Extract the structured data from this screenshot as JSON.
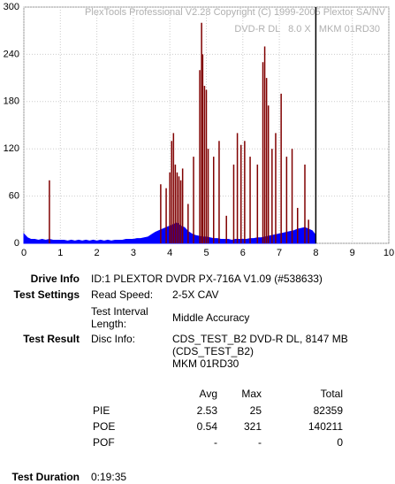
{
  "chart_data": {
    "type": "area_spikes",
    "watermark": [
      "PlexTools Professional V2.28 Copyright (C) 1999-2005 Plextor SA/NV",
      "DVD-R DL   8.0 X   MKM 01RD30"
    ],
    "xlim": [
      0,
      10
    ],
    "xticks": [
      0,
      1,
      2,
      3,
      4,
      5,
      6,
      7,
      8,
      9,
      10
    ],
    "ylim": [
      0,
      300
    ],
    "yticks": [
      0,
      60,
      120,
      180,
      240,
      300
    ],
    "grid": true,
    "end_marker": 8,
    "area": {
      "color": "#0000ff",
      "x": [
        0,
        0.1,
        0.2,
        0.3,
        0.4,
        0.5,
        0.6,
        0.7,
        0.8,
        0.9,
        1,
        1.1,
        1.2,
        1.3,
        1.4,
        1.5,
        1.6,
        1.7,
        1.8,
        1.9,
        2,
        2.1,
        2.2,
        2.3,
        2.4,
        2.5,
        2.6,
        2.7,
        2.8,
        2.9,
        3,
        3.1,
        3.2,
        3.3,
        3.4,
        3.5,
        3.6,
        3.7,
        3.8,
        3.9,
        4,
        4.1,
        4.2,
        4.3,
        4.4,
        4.5,
        4.6,
        4.7,
        4.8,
        4.9,
        5,
        5.1,
        5.2,
        5.3,
        5.4,
        5.5,
        5.6,
        5.7,
        5.8,
        5.9,
        6,
        6.1,
        6.2,
        6.3,
        6.4,
        6.5,
        6.6,
        6.7,
        6.8,
        6.9,
        7,
        7.1,
        7.2,
        7.3,
        7.4,
        7.5,
        7.6,
        7.7,
        7.8,
        7.9,
        8
      ],
      "values": [
        12,
        7,
        5,
        5,
        4,
        5,
        4,
        5,
        4,
        4,
        4,
        4,
        3,
        4,
        3,
        4,
        3,
        4,
        3,
        4,
        3,
        4,
        3,
        4,
        3,
        4,
        4,
        4,
        5,
        5,
        5,
        6,
        6,
        7,
        8,
        11,
        14,
        16,
        18,
        20,
        22,
        24,
        26,
        22,
        20,
        15,
        12,
        10,
        9,
        8,
        8,
        7,
        6,
        6,
        5,
        5,
        5,
        4,
        5,
        5,
        5,
        5,
        6,
        6,
        7,
        7,
        8,
        9,
        10,
        11,
        12,
        13,
        14,
        15,
        16,
        18,
        19,
        20,
        18,
        16,
        10
      ]
    },
    "spikes": {
      "color": "#800000",
      "x": [
        0.7,
        3.75,
        3.9,
        4.0,
        4.05,
        4.1,
        4.15,
        4.2,
        4.25,
        4.3,
        4.35,
        4.5,
        4.65,
        4.82,
        4.87,
        4.9,
        4.95,
        5.0,
        5.05,
        5.2,
        5.35,
        5.55,
        5.75,
        5.85,
        5.95,
        6.05,
        6.2,
        6.4,
        6.55,
        6.6,
        6.65,
        6.7,
        6.8,
        6.9,
        7.05,
        7.2,
        7.35,
        7.5,
        7.7,
        7.8
      ],
      "values": [
        80,
        75,
        70,
        90,
        130,
        140,
        100,
        90,
        85,
        80,
        95,
        50,
        110,
        220,
        280,
        240,
        200,
        195,
        120,
        110,
        130,
        35,
        100,
        140,
        125,
        130,
        110,
        100,
        230,
        250,
        210,
        175,
        120,
        140,
        190,
        110,
        120,
        45,
        100,
        30
      ]
    }
  },
  "report": {
    "drive_info": {
      "label": "Drive Info",
      "value": "ID:1 PLEXTOR DVDR PX-716A V1.09 (#538633)"
    },
    "test_settings": {
      "label": "Test Settings",
      "items": [
        [
          "Read Speed:",
          "2-5X CAV"
        ],
        [
          "Test Interval Length:",
          "Middle Accuracy"
        ]
      ]
    },
    "test_result": {
      "label": "Test Result",
      "disc_info_label": "Disc Info:",
      "disc_info_lines": [
        "CDS_TEST_B2 DVD-R DL, 8147 MB",
        "(CDS_TEST_B2)",
        "MKM 01RD30"
      ]
    },
    "stats": {
      "headers": [
        "Avg",
        "Max",
        "Total"
      ],
      "rows": [
        [
          "PIE",
          "2.53",
          "25",
          "82359"
        ],
        [
          "POE",
          "0.54",
          "321",
          "140211"
        ],
        [
          "POF",
          "-",
          "-",
          "0"
        ]
      ]
    },
    "test_duration": {
      "label": "Test Duration",
      "value": "0:19:35"
    }
  }
}
